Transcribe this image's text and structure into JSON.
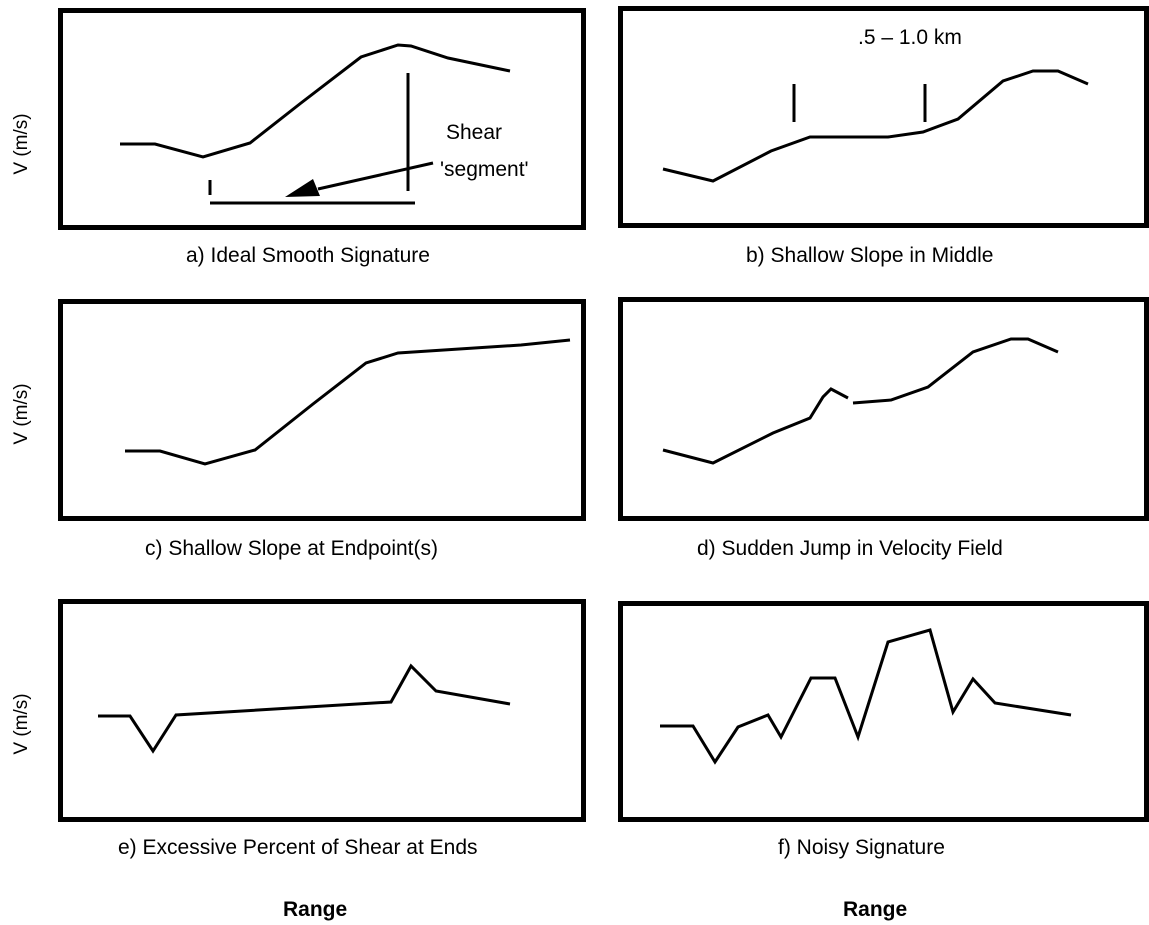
{
  "figure": {
    "y_axis_label": "V (m/s)",
    "x_axis_label": "Range",
    "panels": [
      {
        "id": "a",
        "caption": "a) Ideal Smooth Signature",
        "annotation": {
          "line1": "Shear",
          "line2": "'segment'"
        }
      },
      {
        "id": "b",
        "caption": "b) Shallow Slope in Middle",
        "annotation": {
          "text": ".5 – 1.0 km"
        }
      },
      {
        "id": "c",
        "caption": "c) Shallow Slope at Endpoint(s)"
      },
      {
        "id": "d",
        "caption": "d) Sudden Jump in Velocity Field"
      },
      {
        "id": "e",
        "caption": "e) Excessive Percent of Shear at Ends"
      },
      {
        "id": "f",
        "caption": "f) Noisy Signature"
      }
    ]
  }
}
